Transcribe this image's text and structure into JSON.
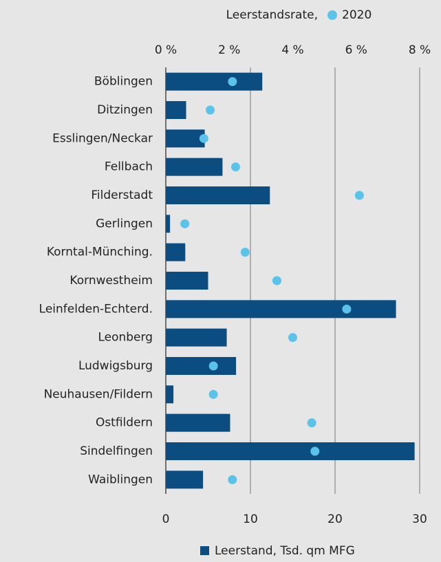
{
  "chart_data": {
    "type": "bar",
    "orientation": "horizontal",
    "categories": [
      "Böblingen",
      "Ditzingen",
      "Esslingen/Neckar",
      "Fellbach",
      "Filderstadt",
      "Gerlingen",
      "Korntal-Münching.",
      "Kornwestheim",
      "Leinfelden-Echterd.",
      "Leonberg",
      "Ludwigsburg",
      "Neuhausen/Fildern",
      "Ostfildern",
      "Sindelfingen",
      "Waiblingen"
    ],
    "series": [
      {
        "name": "Leerstand, Tsd. qm MFG",
        "color": "#0b4d80",
        "values": [
          11.4,
          2.4,
          4.6,
          6.7,
          12.3,
          0.5,
          2.3,
          5.0,
          27.2,
          7.2,
          8.3,
          0.9,
          7.6,
          29.4,
          4.4
        ]
      },
      {
        "name": "2020",
        "type": "scatter",
        "axis": "x2",
        "color": "#5bc2ea",
        "values": [
          2.1,
          1.4,
          1.2,
          2.2,
          6.1,
          0.6,
          2.5,
          3.5,
          5.7,
          4.0,
          1.5,
          1.5,
          4.6,
          4.7,
          2.1
        ]
      }
    ],
    "x2_label": "Leerstandsrate,",
    "xlim": [
      0,
      30
    ],
    "xticks": [
      0,
      10,
      20,
      30
    ],
    "x2lim": [
      0,
      8
    ],
    "x2ticks": [
      {
        "value": 0,
        "label": "0 %"
      },
      {
        "value": 2,
        "label": "2 %"
      },
      {
        "value": 4,
        "label": "4 %"
      },
      {
        "value": 6,
        "label": "6 %"
      },
      {
        "value": 8,
        "label": "8 %"
      }
    ],
    "grid": true
  }
}
